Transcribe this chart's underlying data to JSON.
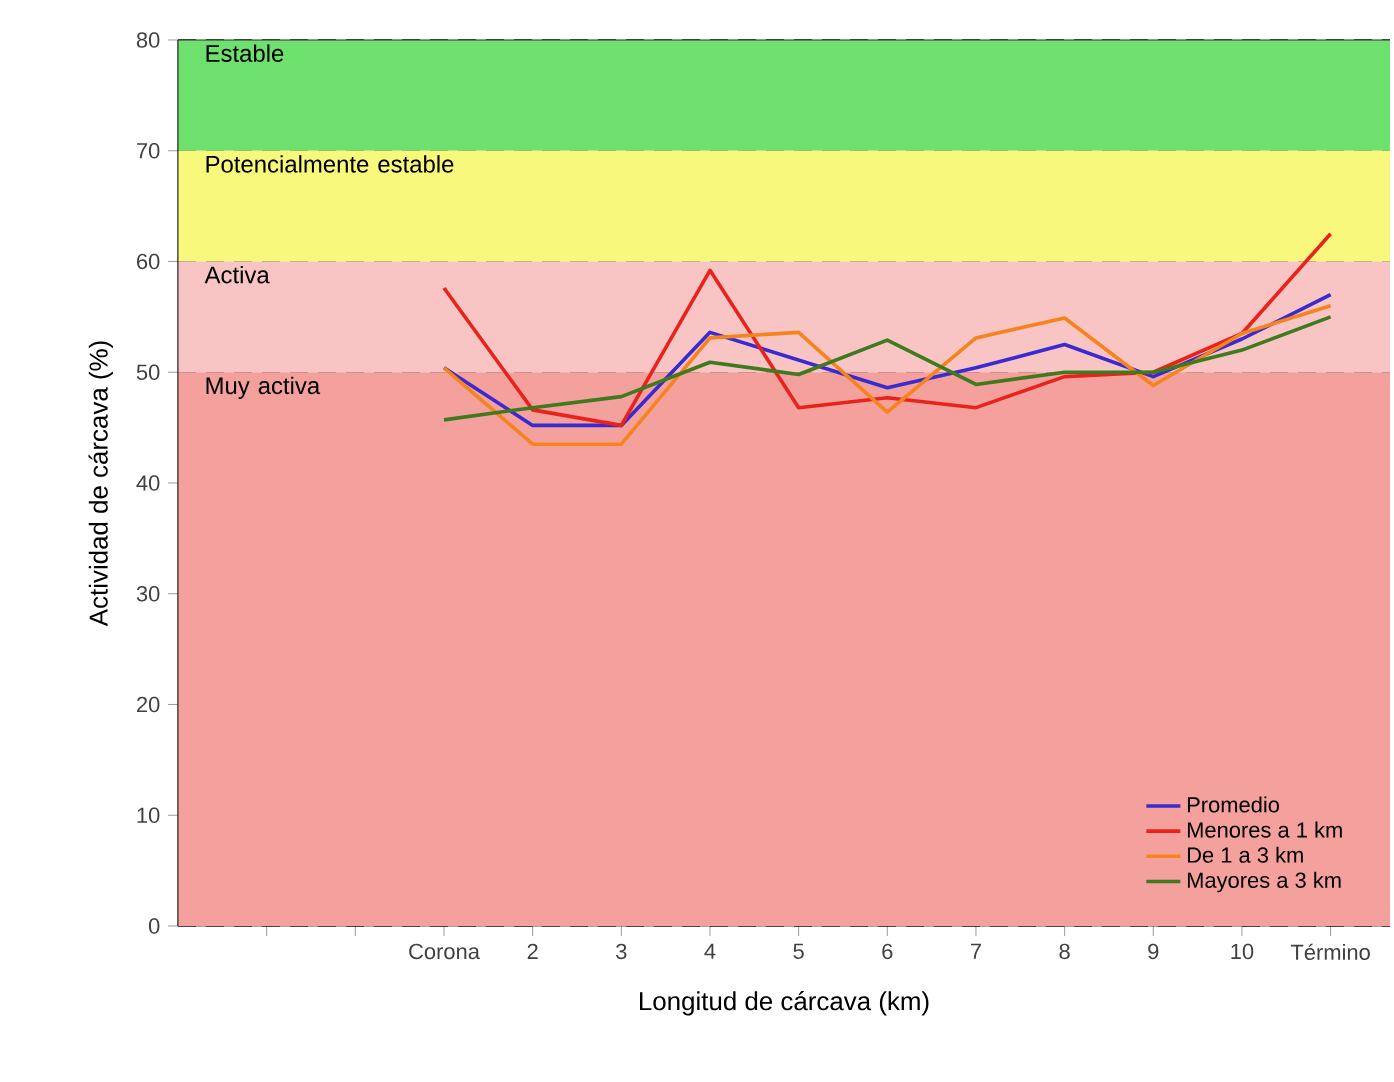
{
  "chart_data": {
    "type": "line",
    "xlabel": "Longitud de cárcava (km)",
    "ylabel": "Actividad de cárcava (%)",
    "categories": [
      null,
      null,
      null,
      "Corona",
      "2",
      "3",
      "4",
      "5",
      "6",
      "7",
      "8",
      "9",
      "10",
      "Término"
    ],
    "series": [
      {
        "name": "Promedio",
        "color": "#3a2bd0",
        "values": [
          null,
          null,
          null,
          50.4,
          45.2,
          45.2,
          53.6,
          51.1,
          48.6,
          50.4,
          52.5,
          49.6,
          53,
          57
        ]
      },
      {
        "name": "Menores a 1 km",
        "color": "#e8231c",
        "values": [
          null,
          null,
          null,
          57.6,
          46.6,
          45.2,
          59.2,
          46.8,
          47.7,
          46.8,
          49.6,
          50,
          53.5,
          62.5
        ]
      },
      {
        "name": "De 1 a 3 km",
        "color": "#f5841f",
        "values": [
          null,
          null,
          null,
          50.4,
          43.5,
          43.5,
          53.1,
          53.6,
          46.4,
          53.1,
          54.9,
          48.8,
          53.5,
          56
        ]
      },
      {
        "name": "Mayores a 3 km",
        "color": "#3f7a1e",
        "values": [
          null,
          null,
          null,
          45.7,
          46.8,
          47.8,
          50.9,
          49.8,
          52.9,
          48.9,
          50,
          50,
          52,
          55
        ]
      }
    ],
    "bands": [
      {
        "axis": "y",
        "from": 70,
        "to": 80,
        "label": "Estable",
        "color": "#6ee06e"
      },
      {
        "axis": "y",
        "from": 60,
        "to": 70,
        "label": "Potencialmente estable",
        "color": "#f8f87c"
      },
      {
        "axis": "y",
        "from": 50,
        "to": 60,
        "label": "Activa",
        "color": "#f8c4c4"
      },
      {
        "axis": "y",
        "from": 0,
        "to": 50,
        "label": "Muy activa",
        "color": "#f4a09c"
      }
    ],
    "ylim": [
      0,
      80
    ],
    "yticks": [
      0,
      10,
      20,
      30,
      40,
      50,
      60,
      70,
      80
    ],
    "grid": "y",
    "legend": "bottom right",
    "marker": "none",
    "line_style": "solid"
  }
}
